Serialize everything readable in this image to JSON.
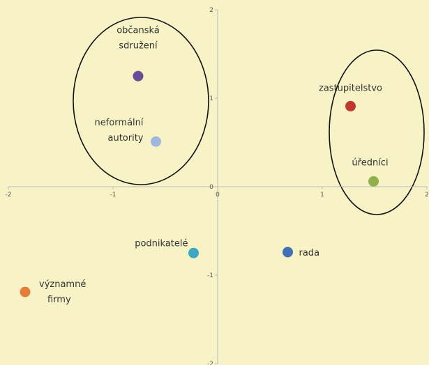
{
  "chart_data": {
    "type": "scatter",
    "points": [
      {
        "label": [
          "občanská",
          "sdružení"
        ],
        "x": -0.76,
        "y": 1.25,
        "color": "#6b4f96"
      },
      {
        "label": [
          "neformální",
          "autority"
        ],
        "x": -0.59,
        "y": 0.51,
        "color": "#9fb6df"
      },
      {
        "label": [
          "zastupitelstvo"
        ],
        "x": 1.27,
        "y": 0.91,
        "color": "#c0392f"
      },
      {
        "label": [
          "úředníci"
        ],
        "x": 1.49,
        "y": 0.06,
        "color": "#8fb04c"
      },
      {
        "label": [
          "podnikatelé"
        ],
        "x": -0.23,
        "y": -0.75,
        "color": "#3ea7c4"
      },
      {
        "label": [
          "rada"
        ],
        "x": 0.67,
        "y": -0.74,
        "color": "#4070b6"
      },
      {
        "label": [
          "významné",
          "firmy"
        ],
        "x": -1.84,
        "y": -1.19,
        "color": "#e47d3a"
      }
    ],
    "xlim": [
      -2,
      2
    ],
    "ylim": [
      -2,
      2
    ],
    "xticks": [
      -2,
      -1,
      0,
      1,
      2
    ],
    "yticks": [
      -2,
      -1,
      0,
      1,
      2
    ]
  }
}
